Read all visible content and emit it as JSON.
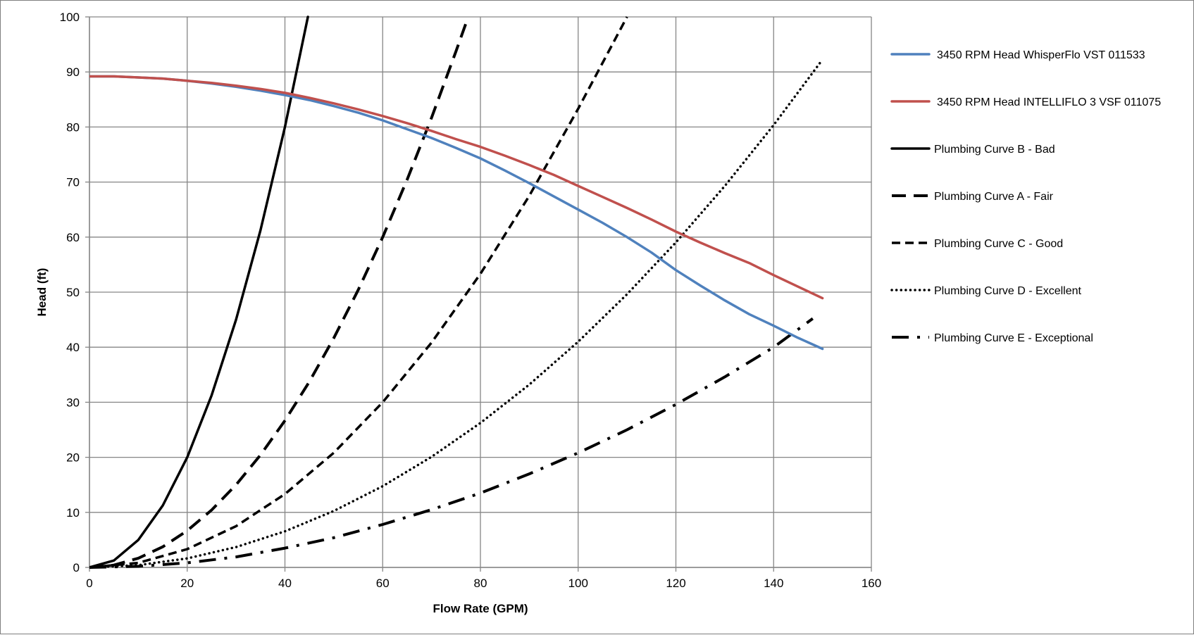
{
  "chart_data": {
    "type": "line",
    "title": "",
    "xlabel": "Flow Rate (GPM)",
    "ylabel": "Head (ft)",
    "xlim": [
      0,
      160
    ],
    "ylim": [
      0,
      100
    ],
    "xticks": [
      0,
      20,
      40,
      60,
      80,
      100,
      120,
      140,
      160
    ],
    "yticks": [
      0,
      10,
      20,
      30,
      40,
      50,
      60,
      70,
      80,
      90,
      100
    ],
    "grid": true,
    "legend_position": "right",
    "series": [
      {
        "name": "3450 RPM Head WhisperFlo VST 011533",
        "color": "#4f81bd",
        "style": "solid",
        "x": [
          0,
          5,
          10,
          15,
          20,
          25,
          30,
          35,
          40,
          45,
          50,
          55,
          60,
          65,
          70,
          75,
          80,
          85,
          90,
          95,
          100,
          105,
          110,
          115,
          120,
          125,
          130,
          135,
          140,
          145,
          150
        ],
        "y": [
          89.2,
          89.2,
          89.0,
          88.8,
          88.4,
          87.9,
          87.3,
          86.6,
          85.8,
          84.9,
          83.8,
          82.6,
          81.2,
          79.6,
          78.0,
          76.2,
          74.3,
          72.1,
          69.8,
          67.4,
          65.0,
          62.6,
          60.0,
          57.2,
          54.0,
          51.2,
          48.5,
          46.0,
          43.9,
          41.7,
          39.7
        ]
      },
      {
        "name": "3450 RPM Head INTELLIFLO 3 VSF 011075",
        "color": "#c0504d",
        "style": "solid",
        "x": [
          0,
          5,
          10,
          15,
          20,
          25,
          30,
          35,
          40,
          45,
          50,
          55,
          60,
          65,
          70,
          75,
          80,
          85,
          90,
          95,
          100,
          105,
          110,
          115,
          120,
          125,
          130,
          135,
          140,
          145,
          150
        ],
        "y": [
          89.2,
          89.2,
          89.0,
          88.8,
          88.4,
          88.0,
          87.5,
          86.9,
          86.2,
          85.3,
          84.3,
          83.2,
          82.0,
          80.7,
          79.3,
          77.8,
          76.4,
          74.8,
          73.1,
          71.3,
          69.3,
          67.3,
          65.3,
          63.2,
          61.0,
          59.0,
          57.1,
          55.3,
          53.1,
          51.0,
          48.9
        ]
      },
      {
        "name": "Plumbing Curve B - Bad",
        "color": "#000000",
        "style": "solid",
        "x": [
          0,
          5,
          10,
          15,
          20,
          25,
          30,
          35,
          40,
          44.7
        ],
        "y": [
          0,
          1.25,
          5,
          11.25,
          20,
          31.25,
          45,
          61.25,
          80,
          100
        ]
      },
      {
        "name": "Plumbing Curve A - Fair",
        "color": "#000000",
        "style": "dash",
        "x": [
          0,
          5,
          10,
          15,
          20,
          25,
          30,
          35,
          40,
          45,
          50,
          55,
          60,
          65,
          70,
          75,
          77.5
        ],
        "y": [
          0,
          0.42,
          1.67,
          3.75,
          6.67,
          10.42,
          15,
          20.42,
          26.67,
          33.75,
          41.67,
          50.42,
          60,
          70.42,
          81.67,
          93.75,
          100
        ]
      },
      {
        "name": "Plumbing Curve C - Good",
        "color": "#000000",
        "style": "short-dash",
        "x": [
          0,
          10,
          20,
          30,
          40,
          50,
          60,
          70,
          80,
          90,
          100,
          110
        ],
        "y": [
          0,
          0.83,
          3.33,
          7.5,
          13.33,
          20.83,
          30,
          40.83,
          53.33,
          67.5,
          83.33,
          100
        ]
      },
      {
        "name": "Plumbing Curve D - Excellent",
        "color": "#000000",
        "style": "dot",
        "x": [
          0,
          10,
          20,
          30,
          40,
          50,
          60,
          70,
          80,
          90,
          100,
          110,
          120,
          130,
          140,
          150
        ],
        "y": [
          0,
          0.41,
          1.64,
          3.69,
          6.56,
          10.25,
          14.76,
          20.09,
          26.24,
          33.21,
          41,
          49.61,
          59.04,
          69.29,
          80.36,
          92.25
        ]
      },
      {
        "name": "Plumbing Curve E - Exceptional",
        "color": "#000000",
        "style": "dash-dot",
        "x": [
          0,
          10,
          20,
          30,
          40,
          50,
          60,
          70,
          80,
          90,
          100,
          110,
          120,
          130,
          140,
          148
        ],
        "y": [
          0,
          0.2,
          0.83,
          1.9,
          3.5,
          5.4,
          7.8,
          10.5,
          13.5,
          17,
          20.8,
          25,
          29.6,
          34.6,
          40,
          45.2
        ]
      }
    ]
  }
}
